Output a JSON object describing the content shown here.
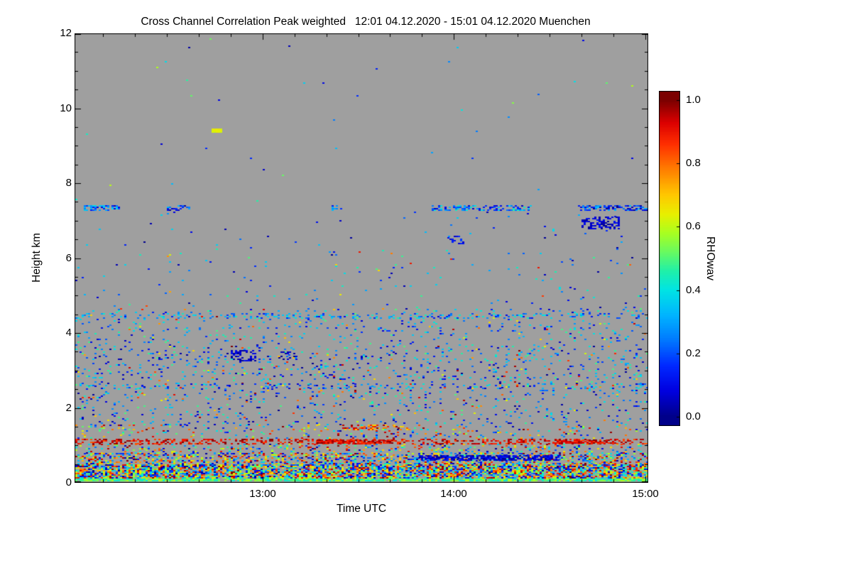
{
  "chart_data": {
    "type": "heatmap",
    "title": "Cross Channel Correlation Peak weighted",
    "header": "Cross Channel Correlation Peak weighted   12:01 04.12.2020 - 15:01 04.12.2020 Muenchen",
    "time_start": "12:01 04.12.2020",
    "time_end": "15:01 04.12.2020",
    "station": "Muenchen",
    "xlabel": "Time UTC",
    "ylabel": "Height km",
    "colorbar_label": "RHOwav",
    "xlim_minutes": [
      0,
      180
    ],
    "ylim_km": [
      0,
      12
    ],
    "value_range": [
      0,
      1
    ],
    "colorbar_bar_range": [
      -0.03,
      1.03
    ],
    "background_color": "#9f9f9f",
    "x_ticks": [
      {
        "label": "13:00",
        "minute": 59
      },
      {
        "label": "14:00",
        "minute": 119
      },
      {
        "label": "15:00",
        "minute": 179
      }
    ],
    "x_minor_step": 10,
    "x_minor_phase": 9,
    "y_ticks": [
      {
        "label": "0",
        "km": 0
      },
      {
        "label": "2",
        "km": 2
      },
      {
        "label": "4",
        "km": 4
      },
      {
        "label": "6",
        "km": 6
      },
      {
        "label": "8",
        "km": 8
      },
      {
        "label": "10",
        "km": 10
      },
      {
        "label": "12",
        "km": 12
      }
    ],
    "y_minor_step": 0.5,
    "colorbar_ticks": [
      {
        "label": "0.0",
        "value": 0.0
      },
      {
        "label": "0.2",
        "value": 0.2
      },
      {
        "label": "0.4",
        "value": 0.4
      },
      {
        "label": "0.6",
        "value": 0.6
      },
      {
        "label": "0.8",
        "value": 0.8
      },
      {
        "label": "1.0",
        "value": 1.0
      }
    ],
    "colormap_stops": [
      [
        0.0,
        "#00008a"
      ],
      [
        0.08,
        "#0000e0"
      ],
      [
        0.16,
        "#0028ff"
      ],
      [
        0.24,
        "#0078ff"
      ],
      [
        0.32,
        "#00b4ff"
      ],
      [
        0.4,
        "#00e4e4"
      ],
      [
        0.46,
        "#20f0a8"
      ],
      [
        0.52,
        "#68fa60"
      ],
      [
        0.58,
        "#a8ff20"
      ],
      [
        0.64,
        "#e8f000"
      ],
      [
        0.7,
        "#ffc800"
      ],
      [
        0.78,
        "#ff8000"
      ],
      [
        0.86,
        "#ff3000"
      ],
      [
        0.93,
        "#dc0000"
      ],
      [
        1.0,
        "#7c0000"
      ]
    ],
    "seed": 13,
    "speckle_bands": [
      {
        "h": [
          0.04,
          0.12
        ],
        "d": 0.9,
        "v": [
          0.4,
          0.6
        ]
      },
      {
        "h": [
          0.12,
          0.5
        ],
        "d": 0.8,
        "v": [
          0.0,
          1.0
        ]
      },
      {
        "h": [
          0.5,
          0.8
        ],
        "d": 0.45,
        "v": [
          0.0,
          1.0
        ]
      },
      {
        "h": [
          0.8,
          1.05
        ],
        "d": 0.18,
        "v": [
          0.0,
          1.0
        ]
      },
      {
        "h": [
          1.05,
          1.18
        ],
        "d": 0.4,
        "v": [
          0.82,
          1.0
        ]
      },
      {
        "h": [
          1.18,
          1.55
        ],
        "d": 0.1,
        "v": [
          0.0,
          1.0
        ]
      },
      {
        "h": [
          1.55,
          2.75
        ],
        "d": 0.07,
        "v": [
          0.0,
          0.5
        ],
        "wf": 0.12,
        "w": [
          0.6,
          1.0
        ]
      },
      {
        "h": [
          2.75,
          3.65
        ],
        "d": 0.09,
        "v": [
          0.0,
          0.5
        ],
        "wf": 0.1,
        "w": [
          0.6,
          1.0
        ]
      },
      {
        "h": [
          3.65,
          4.65
        ],
        "d": 0.06,
        "v": [
          0.05,
          0.5
        ],
        "wf": 0.08,
        "w": [
          0.6,
          1.0
        ]
      },
      {
        "h": [
          4.65,
          6.3
        ],
        "d": 0.012,
        "v": [
          0.0,
          0.5
        ],
        "wf": 0.1,
        "w": [
          0.6,
          0.9
        ]
      },
      {
        "h": [
          6.3,
          7.25
        ],
        "d": 0.006,
        "v": [
          0.0,
          0.4
        ]
      },
      {
        "h": [
          7.5,
          12.0
        ],
        "d": 0.0015,
        "v": [
          0.0,
          0.6
        ]
      }
    ],
    "speckle_features": [
      {
        "h": [
          7.28,
          7.42
        ],
        "t": [
          3,
          14
        ],
        "d": 0.5,
        "v": [
          0.05,
          0.4
        ]
      },
      {
        "h": [
          7.28,
          7.42
        ],
        "t": [
          29,
          36
        ],
        "d": 0.5,
        "v": [
          0.0,
          0.35
        ]
      },
      {
        "h": [
          7.28,
          7.42
        ],
        "t": [
          80,
          84
        ],
        "d": 0.35,
        "v": [
          0.1,
          0.4
        ]
      },
      {
        "h": [
          7.28,
          7.42
        ],
        "t": [
          112,
          143
        ],
        "d": 0.45,
        "v": [
          0.05,
          0.45
        ]
      },
      {
        "h": [
          7.28,
          7.42
        ],
        "t": [
          158,
          180
        ],
        "d": 0.6,
        "v": [
          0.0,
          0.35
        ]
      },
      {
        "h": [
          6.78,
          7.1
        ],
        "t": [
          159,
          171
        ],
        "d": 0.5,
        "v": [
          0.0,
          0.12
        ]
      },
      {
        "h": [
          6.38,
          6.6
        ],
        "t": [
          117,
          122
        ],
        "d": 0.35,
        "v": [
          0.03,
          0.2
        ]
      },
      {
        "h": [
          9.36,
          9.46
        ],
        "t": [
          43,
          46
        ],
        "d": 0.9,
        "v": [
          0.6,
          0.66
        ]
      },
      {
        "h": [
          3.25,
          3.55
        ],
        "t": [
          49,
          57
        ],
        "d": 0.45,
        "v": [
          0.0,
          0.12
        ]
      },
      {
        "h": [
          3.3,
          3.5
        ],
        "t": [
          64,
          70
        ],
        "d": 0.4,
        "v": [
          0.0,
          0.12
        ]
      },
      {
        "h": [
          4.38,
          4.54
        ],
        "t": [
          0,
          180
        ],
        "d": 0.22,
        "v": [
          0.12,
          0.45
        ]
      },
      {
        "h": [
          2.52,
          2.66
        ],
        "t": [
          0,
          180
        ],
        "d": 0.15,
        "v": [
          0.05,
          0.45
        ],
        "wf": 0.08,
        "w": [
          0.6,
          0.9
        ]
      },
      {
        "h": [
          1.42,
          1.56
        ],
        "t": [
          84,
          106
        ],
        "d": 0.35,
        "v": [
          0.65,
          1.0
        ]
      },
      {
        "h": [
          0.58,
          0.74
        ],
        "t": [
          108,
          152
        ],
        "d": 0.7,
        "v": [
          0.0,
          0.15
        ]
      },
      {
        "h": [
          1.05,
          1.16
        ],
        "t": [
          76,
          100
        ],
        "d": 0.7,
        "v": [
          0.85,
          1.0
        ]
      },
      {
        "h": [
          1.05,
          1.16
        ],
        "t": [
          150,
          170
        ],
        "d": 0.6,
        "v": [
          0.85,
          1.0
        ]
      }
    ]
  }
}
